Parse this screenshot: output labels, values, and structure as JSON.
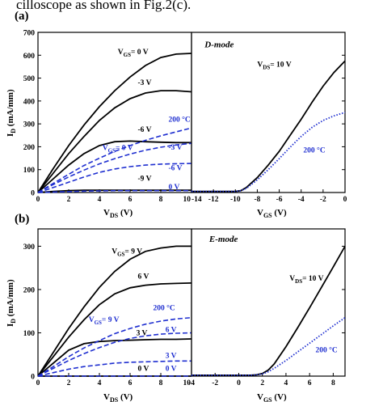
{
  "caption_fragment": "cilloscope as shown in Fig.2(c).",
  "colors": {
    "black": "#000000",
    "blue": "#1f2fd0"
  },
  "chart_data": [
    {
      "panel_label": "(a)",
      "type": "line",
      "title": "",
      "ylabel_main": "I",
      "ylabel_sub": "D",
      "ylabel_unit": " (mA/mm)",
      "ylim": [
        0,
        700
      ],
      "yticks": [
        0,
        100,
        200,
        300,
        400,
        500,
        600,
        700
      ],
      "grid": false,
      "subplots": [
        {
          "xlabel_main": "V",
          "xlabel_sub": "DS",
          "xlabel_unit": " (V)",
          "xlim": [
            0,
            10
          ],
          "xticks": [
            0,
            2,
            4,
            6,
            8,
            10
          ],
          "series": [
            {
              "style": "solid-black",
              "x": [
                0,
                1,
                2,
                3,
                4,
                5,
                6,
                7,
                8,
                9,
                10
              ],
              "values": [
                0,
                105,
                205,
                295,
                375,
                445,
                505,
                555,
                590,
                605,
                608
              ]
            },
            {
              "style": "solid-black",
              "x": [
                0,
                1,
                2,
                3,
                4,
                5,
                6,
                7,
                8,
                9,
                10
              ],
              "values": [
                0,
                85,
                170,
                245,
                315,
                370,
                410,
                435,
                445,
                445,
                440
              ]
            },
            {
              "style": "solid-black",
              "x": [
                0,
                1,
                2,
                3,
                4,
                5,
                6,
                7,
                8,
                9,
                10
              ],
              "values": [
                0,
                60,
                120,
                170,
                205,
                222,
                225,
                222,
                220,
                218,
                218
              ]
            },
            {
              "style": "solid-black",
              "x": [
                0,
                1,
                2,
                3,
                4,
                5,
                6,
                7,
                8,
                9,
                10
              ],
              "values": [
                0,
                5,
                8,
                10,
                10,
                10,
                10,
                10,
                10,
                10,
                10
              ]
            },
            {
              "style": "dashed-blue",
              "x": [
                0,
                1,
                2,
                3,
                4,
                5,
                6,
                7,
                8,
                9,
                10
              ],
              "values": [
                0,
                40,
                80,
                118,
                150,
                180,
                205,
                228,
                248,
                265,
                282
              ]
            },
            {
              "style": "dashed-blue",
              "x": [
                0,
                1,
                2,
                3,
                4,
                5,
                6,
                7,
                8,
                9,
                10
              ],
              "values": [
                0,
                35,
                68,
                98,
                125,
                148,
                168,
                185,
                198,
                208,
                215
              ]
            },
            {
              "style": "dashed-blue",
              "x": [
                0,
                1,
                2,
                3,
                4,
                5,
                6,
                7,
                8,
                9,
                10
              ],
              "values": [
                0,
                22,
                45,
                68,
                88,
                103,
                113,
                120,
                124,
                126,
                127
              ]
            },
            {
              "style": "dashed-blue",
              "x": [
                0,
                1,
                2,
                3,
                4,
                5,
                6,
                7,
                8,
                9,
                10
              ],
              "values": [
                0,
                2,
                4,
                6,
                7,
                8,
                8,
                8,
                8,
                8,
                8
              ]
            }
          ],
          "annotations": [
            {
              "text_main": "V",
              "text_sub": "GS",
              "text_rest": "= 0 V",
              "x": 5.2,
              "y": 605,
              "color": "black"
            },
            {
              "text": "-3 V",
              "x": 6.5,
              "y": 470,
              "color": "black"
            },
            {
              "text": "-6 V",
              "x": 6.5,
              "y": 265,
              "color": "black"
            },
            {
              "text": "-9 V",
              "x": 6.5,
              "y": 52,
              "color": "black"
            },
            {
              "text": "200 °C",
              "x": 8.5,
              "y": 310,
              "color": "blue"
            },
            {
              "text_main": "V",
              "text_sub": "GS",
              "text_rest": "= 0 V",
              "x": 4.2,
              "y": 185,
              "color": "blue"
            },
            {
              "text": "-3 V",
              "x": 8.5,
              "y": 188,
              "color": "blue"
            },
            {
              "text": "-6 V",
              "x": 8.5,
              "y": 98,
              "color": "blue"
            },
            {
              "text": "0 V",
              "x": 8.5,
              "y": 14,
              "color": "blue"
            }
          ]
        },
        {
          "xlabel_main": "V",
          "xlabel_sub": "GS",
          "xlabel_unit": " (V)",
          "xlim": [
            -14,
            0
          ],
          "xticks": [
            -14,
            -12,
            -10,
            -8,
            -6,
            -4,
            -2,
            0
          ],
          "series": [
            {
              "style": "solid-black",
              "x": [
                -14,
                -12,
                -10,
                -9.5,
                -9,
                -8,
                -7,
                -6,
                -5,
                -4,
                -3,
                -2,
                -1,
                0
              ],
              "values": [
                5,
                5,
                5,
                8,
                22,
                65,
                120,
                180,
                250,
                320,
                395,
                465,
                525,
                575
              ]
            },
            {
              "style": "dotted-blue",
              "x": [
                -14,
                -12,
                -10,
                -9.5,
                -9,
                -8,
                -7,
                -6,
                -5,
                -4,
                -3,
                -2,
                -1,
                0
              ],
              "values": [
                5,
                5,
                5,
                8,
                18,
                55,
                100,
                148,
                198,
                245,
                285,
                315,
                335,
                350
              ]
            }
          ],
          "annotations": [
            {
              "text": "D-mode",
              "x": -12.8,
              "y": 635,
              "color": "black",
              "italic": true
            },
            {
              "text_main": "V",
              "text_sub": "DS",
              "text_rest": "= 10 V",
              "x": -8,
              "y": 550,
              "color": "black"
            },
            {
              "text": "200 °C",
              "x": -3.8,
              "y": 175,
              "color": "blue"
            }
          ]
        }
      ]
    },
    {
      "panel_label": "(b)",
      "type": "line",
      "title": "",
      "ylabel_main": "I",
      "ylabel_sub": "D",
      "ylabel_unit": " (mA/mm)",
      "ylim": [
        0,
        340
      ],
      "yticks": [
        0,
        100,
        200,
        300
      ],
      "grid": false,
      "subplots": [
        {
          "xlabel_main": "V",
          "xlabel_sub": "DS",
          "xlabel_unit": " (V)",
          "xlim": [
            0,
            10
          ],
          "xticks": [
            0,
            2,
            4,
            6,
            8,
            10
          ],
          "series": [
            {
              "style": "solid-black",
              "x": [
                0,
                1,
                2,
                3,
                4,
                5,
                6,
                7,
                8,
                9,
                10
              ],
              "values": [
                0,
                55,
                110,
                160,
                205,
                242,
                270,
                288,
                296,
                300,
                300
              ]
            },
            {
              "style": "solid-black",
              "x": [
                0,
                1,
                2,
                3,
                4,
                5,
                6,
                7,
                8,
                9,
                10
              ],
              "values": [
                0,
                45,
                90,
                130,
                165,
                190,
                204,
                210,
                213,
                214,
                215
              ]
            },
            {
              "style": "solid-black",
              "x": [
                0,
                1,
                2,
                3,
                4,
                5,
                6,
                7,
                8,
                9,
                10
              ],
              "values": [
                0,
                30,
                60,
                75,
                80,
                82,
                83,
                84,
                85,
                85,
                86
              ]
            },
            {
              "style": "solid-black",
              "x": [
                0,
                1,
                2,
                3,
                4,
                5,
                6,
                7,
                8,
                9,
                10
              ],
              "values": [
                0,
                0,
                0,
                0,
                0,
                0,
                0,
                0,
                0,
                0,
                0
              ]
            },
            {
              "style": "dashed-blue",
              "x": [
                0,
                1,
                2,
                3,
                4,
                5,
                6,
                7,
                8,
                9,
                10
              ],
              "values": [
                0,
                22,
                45,
                65,
                82,
                98,
                110,
                120,
                127,
                132,
                135
              ]
            },
            {
              "style": "dashed-blue",
              "x": [
                0,
                1,
                2,
                3,
                4,
                5,
                6,
                7,
                8,
                9,
                10
              ],
              "values": [
                0,
                18,
                36,
                52,
                66,
                78,
                87,
                93,
                97,
                99,
                100
              ]
            },
            {
              "style": "dashed-blue",
              "x": [
                0,
                1,
                2,
                3,
                4,
                5,
                6,
                7,
                8,
                9,
                10
              ],
              "values": [
                0,
                8,
                16,
                22,
                26,
                30,
                32,
                33,
                34,
                35,
                35
              ]
            },
            {
              "style": "dashed-blue",
              "x": [
                0,
                1,
                2,
                3,
                4,
                5,
                6,
                7,
                8,
                9,
                10
              ],
              "values": [
                0,
                0,
                0,
                0,
                0,
                0,
                0,
                0,
                0,
                0,
                0
              ]
            }
          ],
          "annotations": [
            {
              "text_main": "V",
              "text_sub": "GS",
              "text_rest": "= 9 V",
              "x": 4.8,
              "y": 283,
              "color": "black"
            },
            {
              "text": "6 V",
              "x": 6.5,
              "y": 225,
              "color": "black"
            },
            {
              "text": "3 V",
              "x": 6.4,
              "y": 94,
              "color": "black"
            },
            {
              "text": "0 V",
              "x": 6.5,
              "y": 12,
              "color": "black"
            },
            {
              "text": "200 °C",
              "x": 7.5,
              "y": 152,
              "color": "blue"
            },
            {
              "text_main": "V",
              "text_sub": "GS",
              "text_rest": "= 9 V",
              "x": 3.3,
              "y": 125,
              "color": "blue"
            },
            {
              "text": "6 V",
              "x": 8.3,
              "y": 102,
              "color": "blue"
            },
            {
              "text": "3 V",
              "x": 8.3,
              "y": 42,
              "color": "blue"
            },
            {
              "text": "0 V",
              "x": 8.3,
              "y": 12,
              "color": "blue"
            }
          ]
        },
        {
          "xlabel_main": "V",
          "xlabel_sub": "GS",
          "xlabel_unit": " (V)",
          "xlim": [
            -4,
            9
          ],
          "xticks": [
            -4,
            -2,
            0,
            2,
            4,
            6,
            8
          ],
          "series": [
            {
              "style": "solid-black",
              "x": [
                -4,
                -2,
                0,
                1,
                1.5,
                2,
                2.5,
                3,
                4,
                5,
                6,
                7,
                8,
                9
              ],
              "values": [
                2,
                2,
                2,
                2,
                3,
                6,
                14,
                28,
                68,
                112,
                158,
                205,
                252,
                300
              ]
            },
            {
              "style": "dotted-blue",
              "x": [
                -4,
                -2,
                0,
                1,
                1.5,
                2,
                2.5,
                3,
                4,
                5,
                6,
                7,
                8,
                9
              ],
              "values": [
                2,
                2,
                2,
                2,
                3,
                5,
                10,
                18,
                36,
                56,
                76,
                96,
                116,
                135
              ]
            }
          ],
          "annotations": [
            {
              "text": "E-mode",
              "x": -2.5,
              "y": 310,
              "color": "black",
              "italic": true
            },
            {
              "text_main": "V",
              "text_sub": "DS",
              "text_rest": "= 10 V",
              "x": 4.3,
              "y": 220,
              "color": "black"
            },
            {
              "text": "200 °C",
              "x": 6.5,
              "y": 55,
              "color": "blue"
            }
          ]
        }
      ]
    }
  ]
}
